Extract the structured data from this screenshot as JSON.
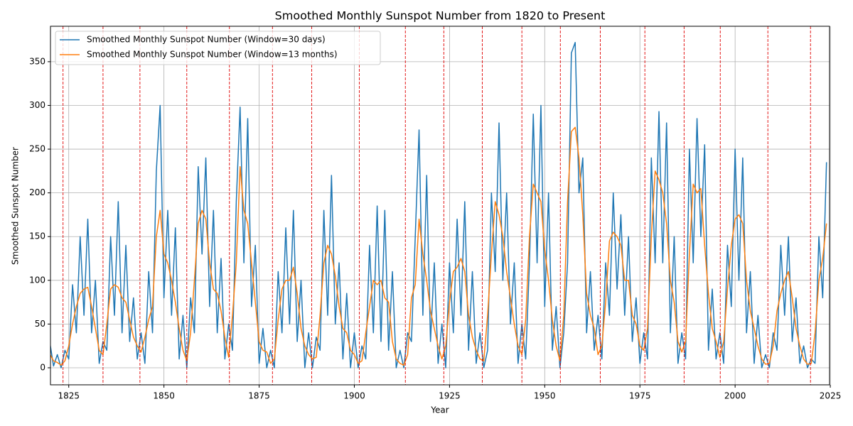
{
  "chart_data": {
    "type": "line",
    "title": "Smoothed Monthly Sunspot Number from 1820 to Present",
    "x_label": "Year",
    "y_label": "Smoothed Sunspot Number",
    "x": [
      1820,
      1821,
      1822,
      1823,
      1824,
      1825,
      1826,
      1827,
      1828,
      1829,
      1830,
      1831,
      1832,
      1833,
      1834,
      1835,
      1836,
      1837,
      1838,
      1839,
      1840,
      1841,
      1842,
      1843,
      1844,
      1845,
      1846,
      1847,
      1848,
      1849,
      1850,
      1851,
      1852,
      1853,
      1854,
      1855,
      1856,
      1857,
      1858,
      1859,
      1860,
      1861,
      1862,
      1863,
      1864,
      1865,
      1866,
      1867,
      1868,
      1869,
      1870,
      1871,
      1872,
      1873,
      1874,
      1875,
      1876,
      1877,
      1878,
      1879,
      1880,
      1881,
      1882,
      1883,
      1884,
      1885,
      1886,
      1887,
      1888,
      1889,
      1890,
      1891,
      1892,
      1893,
      1894,
      1895,
      1896,
      1897,
      1898,
      1899,
      1900,
      1901,
      1902,
      1903,
      1904,
      1905,
      1906,
      1907,
      1908,
      1909,
      1910,
      1911,
      1912,
      1913,
      1914,
      1915,
      1916,
      1917,
      1918,
      1919,
      1920,
      1921,
      1922,
      1923,
      1924,
      1925,
      1926,
      1927,
      1928,
      1929,
      1930,
      1931,
      1932,
      1933,
      1934,
      1935,
      1936,
      1937,
      1938,
      1939,
      1940,
      1941,
      1942,
      1943,
      1944,
      1945,
      1946,
      1947,
      1948,
      1949,
      1950,
      1951,
      1952,
      1953,
      1954,
      1955,
      1956,
      1957,
      1958,
      1959,
      1960,
      1961,
      1962,
      1963,
      1964,
      1965,
      1966,
      1967,
      1968,
      1969,
      1970,
      1971,
      1972,
      1973,
      1974,
      1975,
      1976,
      1977,
      1978,
      1979,
      1980,
      1981,
      1982,
      1983,
      1984,
      1985,
      1986,
      1987,
      1988,
      1989,
      1990,
      1991,
      1992,
      1993,
      1994,
      1995,
      1996,
      1997,
      1998,
      1999,
      2000,
      2001,
      2002,
      2003,
      2004,
      2005,
      2006,
      2007,
      2008,
      2009,
      2010,
      2011,
      2012,
      2013,
      2014,
      2015,
      2016,
      2017,
      2018,
      2019,
      2020,
      2021,
      2022,
      2023,
      2024
    ],
    "series": [
      {
        "name": "Smoothed Monthly Sunspot Number (Window=30 days)",
        "color": "#1f77b4",
        "values": [
          30,
          2,
          15,
          0,
          20,
          10,
          95,
          40,
          150,
          60,
          170,
          40,
          100,
          5,
          30,
          20,
          150,
          60,
          190,
          40,
          140,
          30,
          80,
          10,
          40,
          5,
          110,
          40,
          225,
          300,
          80,
          180,
          60,
          160,
          10,
          60,
          0,
          80,
          40,
          230,
          130,
          240,
          70,
          180,
          40,
          125,
          10,
          50,
          20,
          190,
          298,
          120,
          285,
          70,
          140,
          5,
          45,
          0,
          20,
          0,
          110,
          40,
          160,
          50,
          180,
          30,
          100,
          0,
          40,
          0,
          35,
          20,
          180,
          60,
          220,
          50,
          120,
          10,
          85,
          0,
          40,
          0,
          25,
          10,
          140,
          40,
          185,
          30,
          180,
          20,
          110,
          0,
          20,
          0,
          40,
          30,
          150,
          272,
          60,
          220,
          30,
          120,
          5,
          50,
          0,
          120,
          40,
          170,
          60,
          190,
          20,
          110,
          5,
          40,
          0,
          20,
          200,
          110,
          280,
          100,
          200,
          50,
          120,
          5,
          50,
          10,
          120,
          290,
          120,
          300,
          70,
          200,
          20,
          70,
          0,
          40,
          120,
          360,
          372,
          200,
          240,
          40,
          110,
          20,
          60,
          10,
          120,
          60,
          200,
          90,
          175,
          60,
          150,
          30,
          80,
          5,
          40,
          10,
          240,
          120,
          293,
          120,
          280,
          40,
          150,
          5,
          40,
          10,
          250,
          120,
          285,
          150,
          255,
          20,
          90,
          10,
          40,
          5,
          140,
          70,
          250,
          100,
          240,
          40,
          110,
          5,
          60,
          0,
          15,
          0,
          40,
          20,
          140,
          60,
          150,
          30,
          80,
          5,
          25,
          0,
          10,
          5,
          150,
          80,
          235
        ]
      },
      {
        "name": "Smoothed Monthly Sunspot Number (Window=13 months)",
        "color": "#ff7f0e",
        "values": [
          16,
          8,
          6,
          3,
          8,
          25,
          50,
          70,
          85,
          90,
          92,
          70,
          45,
          20,
          15,
          50,
          90,
          95,
          92,
          80,
          75,
          55,
          35,
          25,
          18,
          35,
          55,
          70,
          150,
          180,
          130,
          120,
          100,
          75,
          45,
          20,
          8,
          40,
          100,
          165,
          180,
          170,
          120,
          90,
          85,
          65,
          35,
          12,
          60,
          120,
          230,
          180,
          165,
          120,
          75,
          30,
          20,
          18,
          5,
          10,
          55,
          90,
          100,
          100,
          115,
          85,
          45,
          25,
          15,
          10,
          12,
          60,
          120,
          140,
          130,
          105,
          70,
          45,
          40,
          20,
          15,
          5,
          8,
          40,
          70,
          100,
          95,
          100,
          80,
          75,
          30,
          10,
          5,
          3,
          15,
          80,
          95,
          170,
          130,
          100,
          65,
          45,
          25,
          10,
          25,
          75,
          110,
          115,
          125,
          110,
          60,
          35,
          20,
          10,
          8,
          60,
          130,
          190,
          175,
          150,
          110,
          80,
          50,
          25,
          15,
          55,
          150,
          210,
          200,
          190,
          135,
          100,
          55,
          25,
          8,
          60,
          190,
          270,
          275,
          240,
          175,
          85,
          60,
          45,
          15,
          25,
          75,
          145,
          155,
          150,
          140,
          100,
          100,
          60,
          50,
          25,
          20,
          45,
          150,
          225,
          215,
          200,
          165,
          100,
          75,
          30,
          18,
          30,
          130,
          210,
          200,
          205,
          140,
          85,
          45,
          30,
          12,
          30,
          90,
          140,
          170,
          175,
          165,
          100,
          65,
          45,
          25,
          10,
          4,
          5,
          25,
          65,
          85,
          100,
          110,
          80,
          45,
          25,
          10,
          4,
          5,
          40,
          100,
          125,
          165
        ]
      }
    ],
    "minima": [
      1823.5,
      1834.0,
      1843.7,
      1856.0,
      1867.2,
      1878.5,
      1888.8,
      1901.3,
      1913.4,
      1923.5,
      1933.6,
      1944.0,
      1954.1,
      1964.6,
      1976.3,
      1986.6,
      1996.1,
      2008.6,
      2019.8
    ],
    "minima_color": "#e00000",
    "xlim": [
      1820.2,
      2024.8
    ],
    "xticks": [
      1825,
      1850,
      1875,
      1900,
      1925,
      1950,
      1975,
      2000,
      2025
    ],
    "ylim": [
      -19.5,
      390.5
    ],
    "yticks": [
      0,
      50,
      100,
      150,
      200,
      250,
      300,
      350
    ],
    "grid": true,
    "legend": "upper left"
  }
}
